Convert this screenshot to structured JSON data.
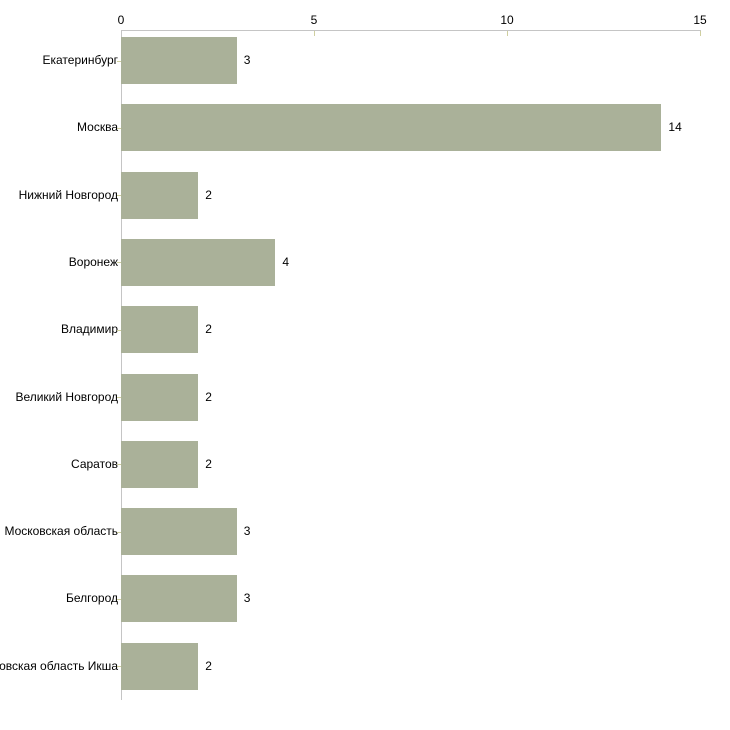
{
  "chart_data": {
    "type": "bar",
    "orientation": "horizontal",
    "title": "",
    "xlabel": "",
    "ylabel": "",
    "categories": [
      "Екатеринбург",
      "Москва",
      "Нижний Новгород",
      "Воронеж",
      "Владимир",
      "Великий Новгород",
      "Саратов",
      "Московская область",
      "Белгород",
      "Московская область Икша"
    ],
    "values": [
      3,
      14,
      2,
      4,
      2,
      2,
      2,
      3,
      3,
      2
    ],
    "value_labels": [
      "3",
      "14",
      "2",
      "4",
      "2",
      "2",
      "2",
      "3",
      "3",
      "2"
    ],
    "xlim": [
      0,
      15
    ],
    "x_ticks": [
      0,
      5,
      10,
      15
    ],
    "x_tick_labels": [
      "0",
      "5",
      "10",
      "15"
    ],
    "grid": false,
    "legend": false,
    "colors": {
      "bar_fill": "#aab199",
      "axis_line": "#c5c5c5",
      "tick_mark": "#cfcfa0",
      "text": "#000000",
      "background": "#ffffff"
    }
  }
}
